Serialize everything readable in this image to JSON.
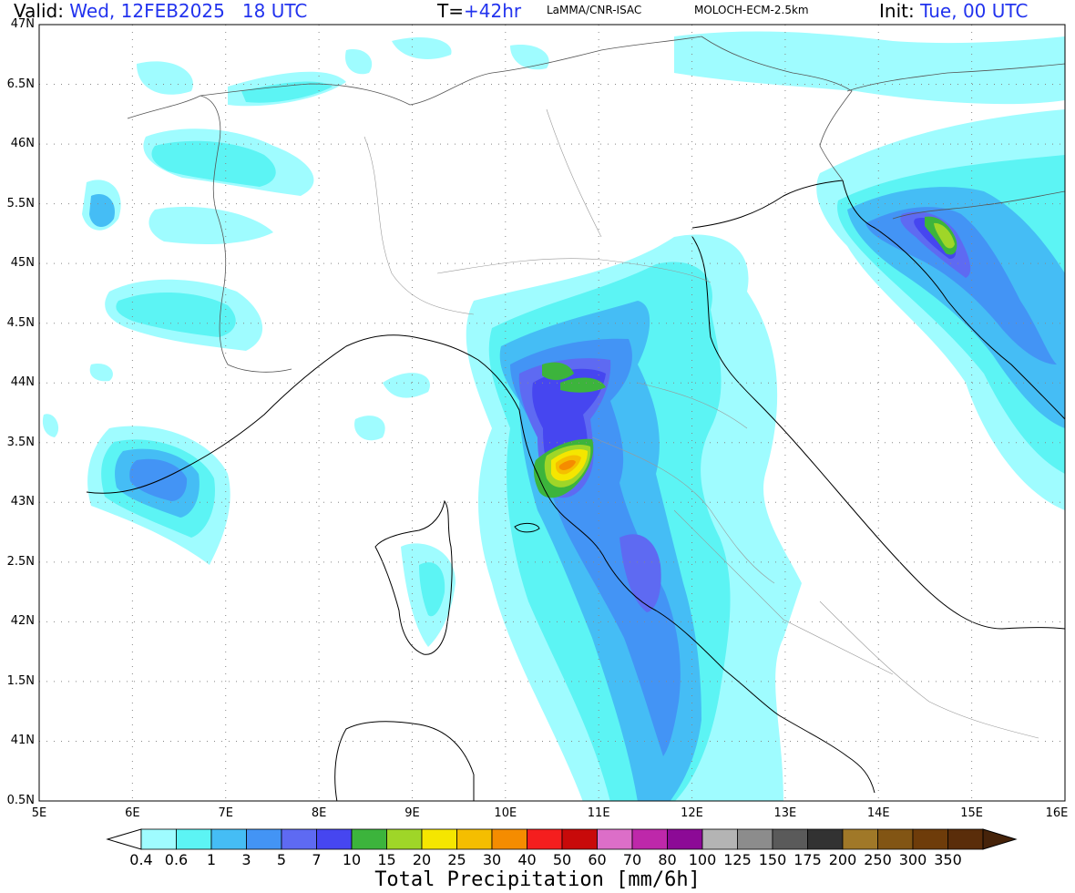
{
  "header": {
    "valid_label": "Valid:",
    "valid_value": "Wed, 12FEB2025   18 UTC",
    "t_label": "T=",
    "t_value": "+42hr",
    "org": "LaMMA/CNR-ISAC",
    "model": "MOLOCH-ECM-2.5km",
    "init_label": "Init:",
    "init_value": "Tue, 00 UTC"
  },
  "axes": {
    "lat_labels": [
      "47N",
      "6.5N",
      "46N",
      "5.5N",
      "45N",
      "4.5N",
      "44N",
      "3.5N",
      "43N",
      "2.5N",
      "42N",
      "1.5N",
      "41N",
      "0.5N"
    ],
    "lon_labels": [
      "5E",
      "6E",
      "7E",
      "8E",
      "9E",
      "10E",
      "11E",
      "12E",
      "13E",
      "14E",
      "15E",
      "16E"
    ],
    "lat_range": [
      40.5,
      47
    ],
    "lon_range": [
      5,
      16
    ]
  },
  "legend": {
    "title": "Total Precipitation [mm/6h]",
    "levels": [
      "0.4",
      "0.6",
      "1",
      "3",
      "5",
      "7",
      "10",
      "15",
      "20",
      "25",
      "30",
      "40",
      "50",
      "60",
      "70",
      "80",
      "100",
      "125",
      "150",
      "175",
      "200",
      "250",
      "300",
      "350"
    ],
    "colors": [
      "#9ffcff",
      "#5cf4f4",
      "#45bdf5",
      "#4394f5",
      "#5e6af2",
      "#4646f0",
      "#3cb43c",
      "#9fd628",
      "#f5e600",
      "#f5be00",
      "#f58c00",
      "#f51e1e",
      "#c80a0a",
      "#dc6ec8",
      "#be28aa",
      "#8c0a96",
      "#b4b4b4",
      "#8c8c8c",
      "#5a5a5a",
      "#323232",
      "#a07828",
      "#825514",
      "#6e3c0a",
      "#5a2d0a",
      "#46230a"
    ]
  }
}
